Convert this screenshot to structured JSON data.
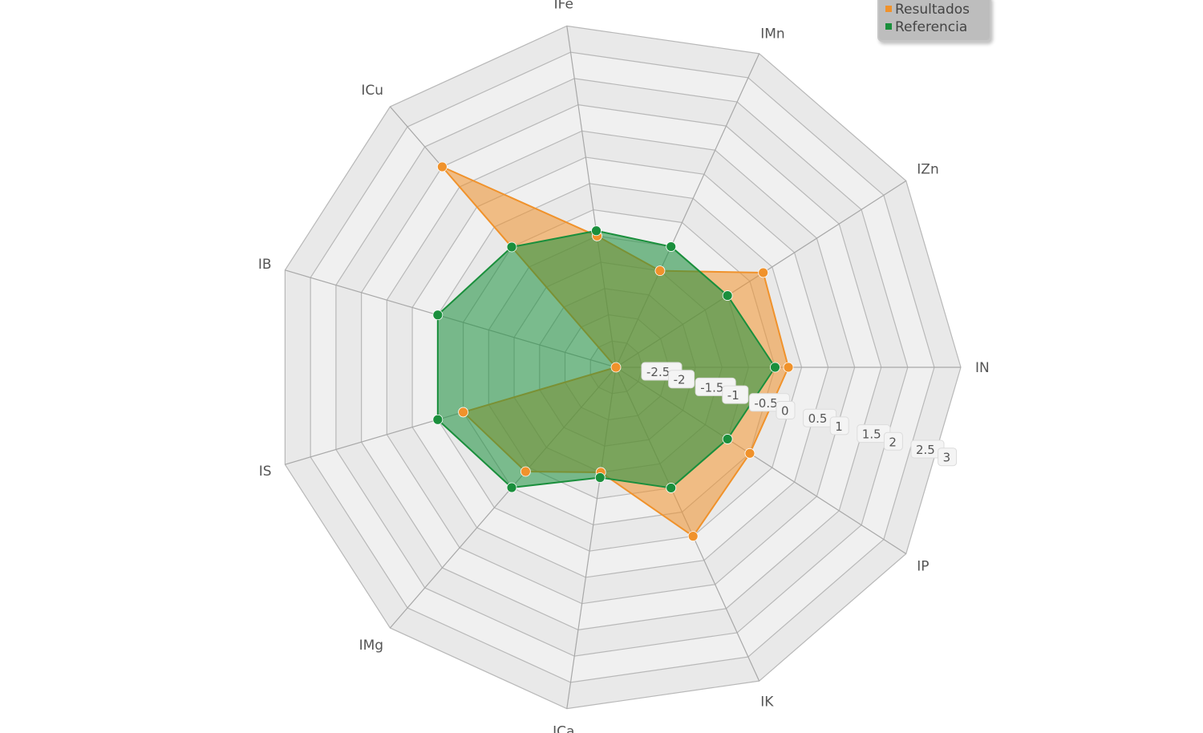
{
  "chart_data": {
    "type": "radar",
    "categories": [
      "IN",
      "IP",
      "IK",
      "ICa",
      "IMg",
      "IS",
      "IB",
      "ICu",
      "IFe",
      "IMn",
      "IZn"
    ],
    "series": [
      {
        "name": "Resultados",
        "color": "#f0922b",
        "values": [
          0.25,
          0.0,
          0.5,
          -1.0,
          -0.4,
          0.0,
          -3.0,
          2.0,
          -0.5,
          -1.0,
          0.3
        ]
      },
      {
        "name": "Referencia",
        "color": "#1a8f3c",
        "values": [
          0.0,
          -0.5,
          -0.5,
          -0.9,
          0.0,
          0.5,
          0.5,
          0.0,
          -0.4,
          -0.5,
          -0.5
        ]
      }
    ],
    "rlim": [
      -3,
      3.5
    ],
    "ticks": [
      "-2.5",
      "-2",
      "-1.5",
      "-1",
      "-0.5",
      "0",
      "0.5",
      "1",
      "1.5",
      "2",
      "2.5",
      "3"
    ],
    "grid": true,
    "legend_position": "top-right"
  }
}
